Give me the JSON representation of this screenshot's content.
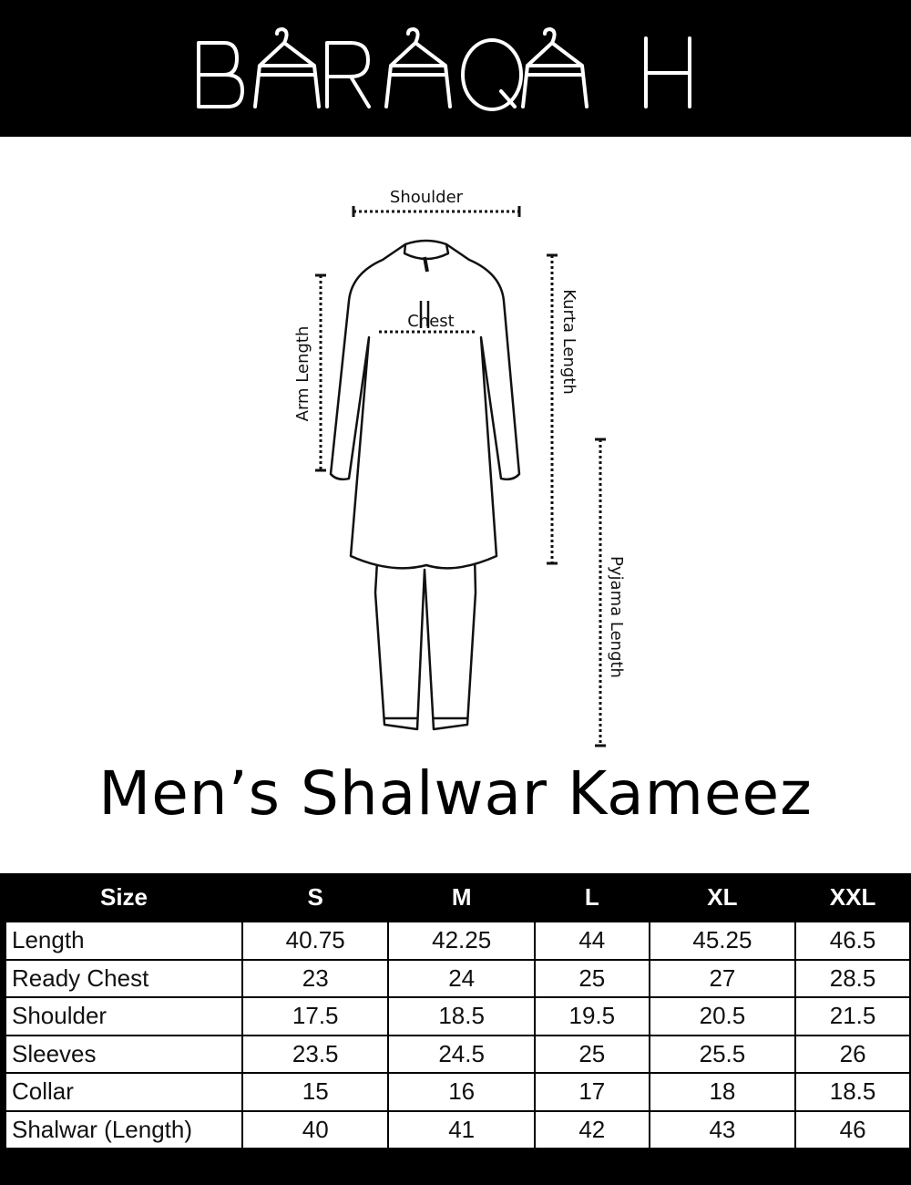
{
  "brand": {
    "logo_text": "BARAQAH"
  },
  "diagram": {
    "labels": {
      "shoulder": "Shoulder",
      "chest": "Chest",
      "arm_length": "Arm Length",
      "kurta_length": "Kurta Length",
      "pyjama_length": "Pyjama Length"
    }
  },
  "title": "Men’s Shalwar Kameez",
  "table": {
    "headers": [
      "Size",
      "S",
      "M",
      "L",
      "XL",
      "XXL"
    ],
    "rows": [
      {
        "label": "Length",
        "values": [
          "40.75",
          "42.25",
          "44",
          "45.25",
          "46.5"
        ]
      },
      {
        "label": "Ready Chest",
        "values": [
          "23",
          "24",
          "25",
          "27",
          "28.5"
        ]
      },
      {
        "label": "Shoulder",
        "values": [
          "17.5",
          "18.5",
          "19.5",
          "20.5",
          "21.5"
        ]
      },
      {
        "label": "Sleeves",
        "values": [
          "23.5",
          "24.5",
          "25",
          "25.5",
          "26"
        ]
      },
      {
        "label": "Collar",
        "values": [
          "15",
          "16",
          "17",
          "18",
          "18.5"
        ]
      },
      {
        "label": "Shalwar (Length)",
        "values": [
          "40",
          "41",
          "42",
          "43",
          "46"
        ]
      }
    ]
  }
}
